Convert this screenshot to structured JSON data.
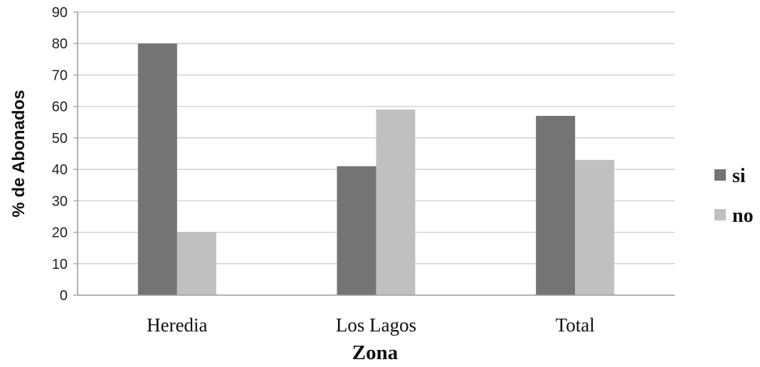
{
  "chart_data": {
    "type": "bar",
    "categories": [
      "Heredia",
      "Los Lagos",
      "Total"
    ],
    "series": [
      {
        "name": "si",
        "values": [
          80,
          41,
          57
        ],
        "color": "#747474"
      },
      {
        "name": "no",
        "values": [
          20,
          59,
          43
        ],
        "color": "#c0c0c0"
      }
    ],
    "xlabel": "Zona",
    "ylabel": "% de Abonados",
    "ylim": [
      0,
      90
    ],
    "yticks": [
      0,
      10,
      20,
      30,
      40,
      50,
      60,
      70,
      80,
      90
    ],
    "grid": true,
    "legend_position": "right"
  }
}
